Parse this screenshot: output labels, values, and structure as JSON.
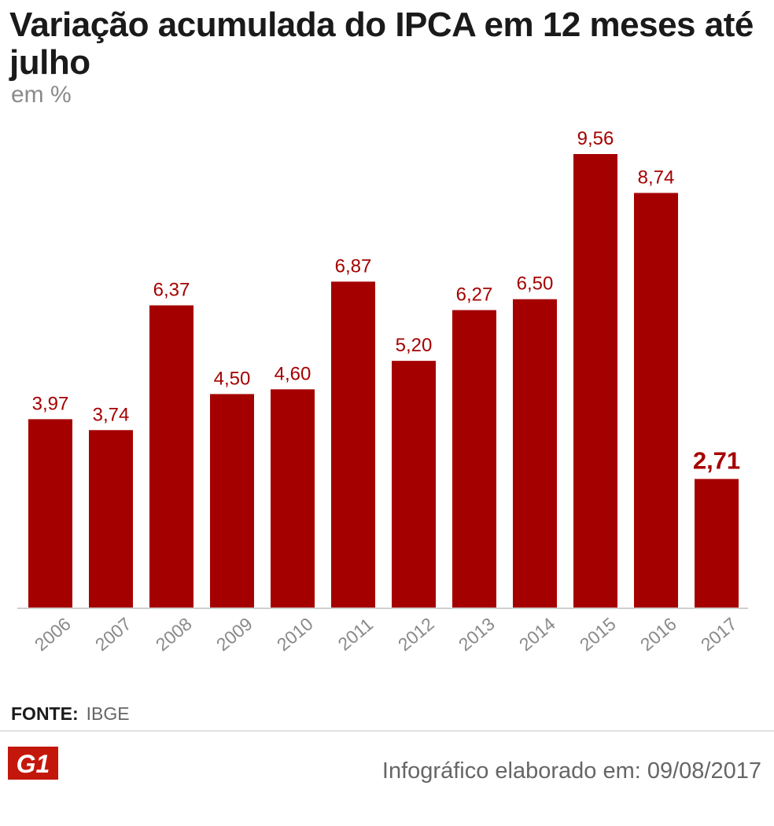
{
  "title": "Variação acumulada do IPCA em 12 meses até julho",
  "subtitle": "em %",
  "chart_data": {
    "type": "bar",
    "title": "Variação acumulada do IPCA em 12 meses até julho",
    "subtitle": "em %",
    "categories": [
      "2006",
      "2007",
      "2008",
      "2009",
      "2010",
      "2011",
      "2012",
      "2013",
      "2014",
      "2015",
      "2016",
      "2017"
    ],
    "values": [
      3.97,
      3.74,
      6.37,
      4.5,
      4.6,
      6.87,
      5.2,
      6.27,
      6.5,
      9.56,
      8.74,
      2.71
    ],
    "value_labels": [
      "3,97",
      "3,74",
      "6,37",
      "4,50",
      "4,60",
      "6,87",
      "5,20",
      "6,27",
      "6,50",
      "9,56",
      "8,74",
      "2,71"
    ],
    "highlight_last": true,
    "ylim": [
      0,
      9.56
    ],
    "grid": false,
    "bar_color": "#a50000",
    "label_color": "#a50000",
    "tick_color": "#8a8a8a"
  },
  "source": {
    "label": "FONTE:",
    "value": "IBGE"
  },
  "logo": {
    "text": "G1",
    "color": "#c4170c"
  },
  "credit": "Infográfico elaborado em: 09/08/2017"
}
